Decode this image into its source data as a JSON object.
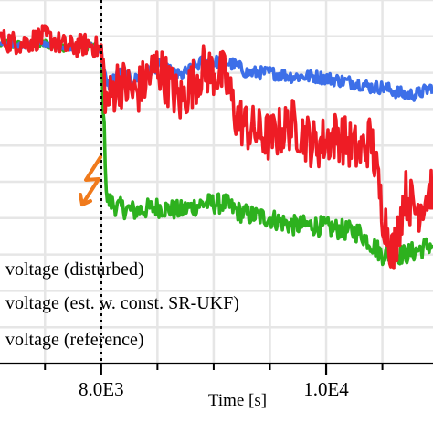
{
  "chart_data": {
    "type": "line",
    "title": "",
    "xlabel": "Time [s]",
    "ylabel": "",
    "xlim": [
      7100,
      10950
    ],
    "ylim": [
      0,
      1
    ],
    "grid": true,
    "xticks": [
      {
        "value": 8000,
        "label": "8.0E3"
      },
      {
        "value": 10000,
        "label": "1.0E4"
      }
    ],
    "minor_xticks": [
      7500,
      8500,
      9000,
      9500,
      10500
    ],
    "event_marker": {
      "x": 8000,
      "style": "dotted vertical line",
      "icon": "lightning-bolt-icon",
      "color": "#f07a1c"
    },
    "legend": {
      "position": "bottom-left",
      "entries": [
        "voltage (disturbed)",
        "voltage (est. w. const. SR-UKF)",
        "voltage (reference)"
      ]
    },
    "series": [
      {
        "name": "voltage (disturbed)",
        "color": "#ee1c25",
        "x": [
          7100,
          7300,
          7500,
          7700,
          7900,
          8000,
          8050,
          8150,
          8300,
          8500,
          8700,
          8900,
          9000,
          9100,
          9200,
          9300,
          9500,
          9700,
          9900,
          10100,
          10300,
          10400,
          10500,
          10600,
          10700,
          10800,
          10950
        ],
        "values": [
          0.89,
          0.88,
          0.9,
          0.87,
          0.88,
          0.86,
          0.71,
          0.78,
          0.74,
          0.82,
          0.72,
          0.81,
          0.8,
          0.79,
          0.68,
          0.65,
          0.62,
          0.66,
          0.6,
          0.63,
          0.58,
          0.62,
          0.42,
          0.3,
          0.47,
          0.42,
          0.49
        ]
      },
      {
        "name": "voltage (est. w. const. SR-UKF)",
        "color": "#3d6fe8",
        "x": [
          7100,
          7300,
          7500,
          7700,
          7900,
          8000,
          8050,
          8150,
          8300,
          8500,
          8700,
          8900,
          9000,
          9100,
          9200,
          9300,
          9500,
          9700,
          9900,
          10100,
          10300,
          10400,
          10500,
          10600,
          10700,
          10800,
          10950
        ],
        "values": [
          0.88,
          0.875,
          0.88,
          0.87,
          0.875,
          0.86,
          0.76,
          0.8,
          0.78,
          0.82,
          0.79,
          0.83,
          0.83,
          0.83,
          0.82,
          0.8,
          0.8,
          0.79,
          0.79,
          0.78,
          0.77,
          0.76,
          0.76,
          0.75,
          0.74,
          0.74,
          0.76
        ]
      },
      {
        "name": "voltage (reference)",
        "color": "#2db11e",
        "x": [
          7100,
          7300,
          7500,
          7700,
          7900,
          8000,
          8050,
          8150,
          8300,
          8500,
          8700,
          8900,
          9000,
          9100,
          9200,
          9300,
          9500,
          9700,
          9900,
          10100,
          10300,
          10400,
          10500,
          10600,
          10700,
          10800,
          10950
        ],
        "values": [
          0.88,
          0.875,
          0.88,
          0.87,
          0.875,
          0.86,
          0.45,
          0.43,
          0.42,
          0.43,
          0.42,
          0.44,
          0.44,
          0.44,
          0.42,
          0.41,
          0.4,
          0.38,
          0.38,
          0.37,
          0.36,
          0.33,
          0.3,
          0.3,
          0.3,
          0.31,
          0.33
        ]
      }
    ]
  }
}
